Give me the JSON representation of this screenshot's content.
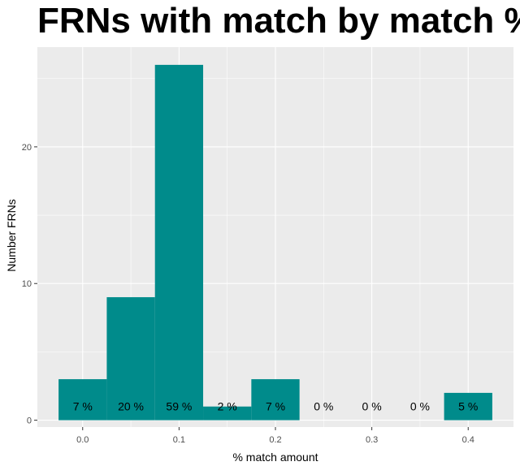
{
  "chart_data": {
    "type": "bar",
    "title": "FRNs with match by match %",
    "xlabel": "% match amount",
    "ylabel": "Number FRNs",
    "bin_width": 0.05,
    "bars": [
      {
        "center": 0.0,
        "count": 3,
        "label": "7 %"
      },
      {
        "center": 0.05,
        "count": 9,
        "label": "20 %"
      },
      {
        "center": 0.1,
        "count": 26,
        "label": "59 %"
      },
      {
        "center": 0.15,
        "count": 1,
        "label": "2 %"
      },
      {
        "center": 0.2,
        "count": 3,
        "label": "7 %"
      },
      {
        "center": 0.25,
        "count": 0,
        "label": "0 %"
      },
      {
        "center": 0.3,
        "count": 0,
        "label": "0 %"
      },
      {
        "center": 0.35,
        "count": 0,
        "label": "0 %"
      },
      {
        "center": 0.4,
        "count": 2,
        "label": "5 %"
      }
    ],
    "x_ticks": [
      {
        "value": 0.0,
        "label": "0.0"
      },
      {
        "value": 0.1,
        "label": "0.1"
      },
      {
        "value": 0.2,
        "label": "0.2"
      },
      {
        "value": 0.3,
        "label": "0.3"
      },
      {
        "value": 0.4,
        "label": "0.4"
      }
    ],
    "y_ticks": [
      {
        "value": 0,
        "label": "0"
      },
      {
        "value": 10,
        "label": "10"
      },
      {
        "value": 20,
        "label": "20"
      }
    ],
    "xlim": [
      -0.047,
      0.447
    ],
    "ylim": [
      -0.5,
      27.3
    ],
    "grid": true,
    "colors": {
      "bar": "#008b8b",
      "panel": "#ebebeb",
      "grid": "#ffffff"
    }
  }
}
